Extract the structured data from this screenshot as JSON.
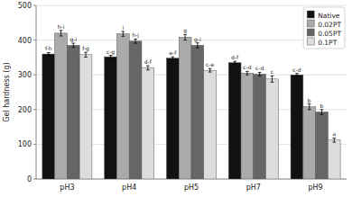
{
  "chart_data": {
    "type": "bar",
    "categories": [
      "pH3",
      "pH4",
      "pH5",
      "pH7",
      "pH9"
    ],
    "ylabel": "Gel hardness (g)",
    "ylim": [
      0,
      500
    ],
    "yticks": [
      0,
      100,
      200,
      300,
      400,
      500
    ],
    "grid": true,
    "legend": "upper right",
    "series": [
      {
        "name": "Native",
        "color": "#111111",
        "values": [
          360,
          352,
          348,
          335,
          300
        ],
        "errors": [
          4,
          4,
          4,
          4,
          4
        ],
        "annotations": [
          "f-h",
          "c-g",
          "e-f",
          "d-f",
          "c-d"
        ]
      },
      {
        "name": "0.02PT",
        "color": "#aaaaaa",
        "values": [
          420,
          418,
          408,
          305,
          208
        ],
        "errors": [
          8,
          7,
          8,
          5,
          8
        ],
        "annotations": [
          "h-i",
          "i",
          "g",
          "c-d",
          "b"
        ]
      },
      {
        "name": "0.05PT",
        "color": "#666666",
        "values": [
          385,
          397,
          385,
          302,
          193
        ],
        "errors": [
          6,
          6,
          7,
          5,
          7
        ],
        "annotations": [
          "g-i",
          "h-j",
          "g-i",
          "c-d",
          "b"
        ]
      },
      {
        "name": "0.1PT",
        "color": "#dddddd",
        "values": [
          358,
          320,
          313,
          288,
          112
        ],
        "errors": [
          7,
          6,
          5,
          9,
          6
        ],
        "annotations": [
          "f-g",
          "d-f",
          "c-e",
          "c",
          "a"
        ]
      }
    ]
  }
}
